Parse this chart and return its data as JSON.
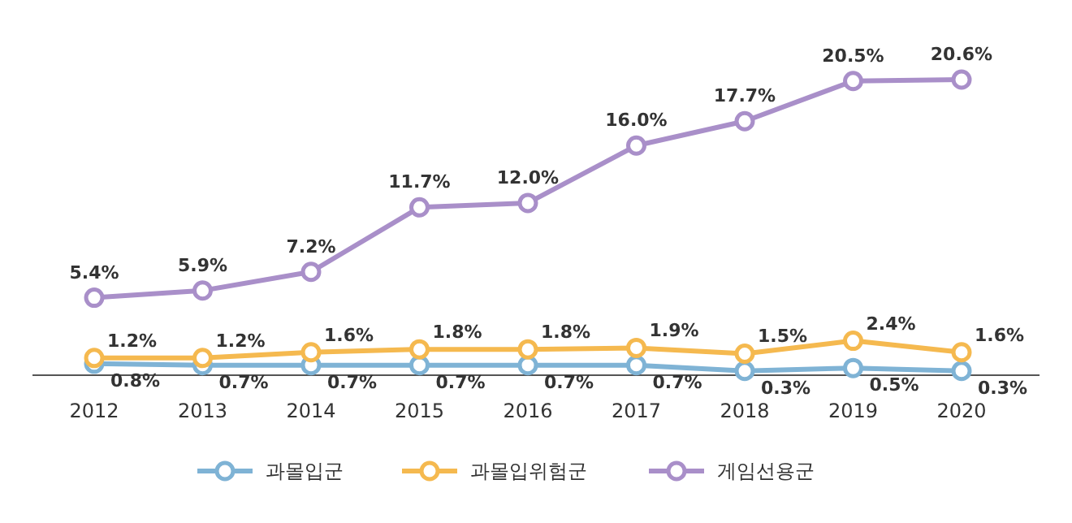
{
  "chart_data": {
    "type": "line",
    "categories": [
      "2012",
      "2013",
      "2014",
      "2015",
      "2016",
      "2017",
      "2018",
      "2019",
      "2020"
    ],
    "marker": "circle",
    "legend": "bottom",
    "series": [
      {
        "name": "과몰입군",
        "color": "#7fb3d5",
        "values": [
          0.8,
          0.7,
          0.7,
          0.7,
          0.7,
          0.7,
          0.3,
          0.5,
          0.3
        ],
        "value_labels": [
          "0.8%",
          "0.7%",
          "0.7%",
          "0.7%",
          "0.7%",
          "0.7%",
          "0.3%",
          "0.5%",
          "0.3%"
        ]
      },
      {
        "name": "과몰입위험군",
        "color": "#f5b94f",
        "values": [
          1.2,
          1.2,
          1.6,
          1.8,
          1.8,
          1.9,
          1.5,
          2.4,
          1.6
        ],
        "value_labels": [
          "1.2%",
          "1.2%",
          "1.6%",
          "1.8%",
          "1.8%",
          "1.9%",
          "1.5%",
          "2.4%",
          "1.6%"
        ]
      },
      {
        "name": "게임선용군",
        "color": "#a98fc9",
        "values": [
          5.4,
          5.9,
          7.2,
          11.7,
          12.0,
          16.0,
          17.7,
          20.5,
          20.6
        ],
        "value_labels": [
          "5.4%",
          "5.9%",
          "7.2%",
          "11.7%",
          "12.0%",
          "16.0%",
          "17.7%",
          "20.5%",
          "20.6%"
        ]
      }
    ]
  }
}
